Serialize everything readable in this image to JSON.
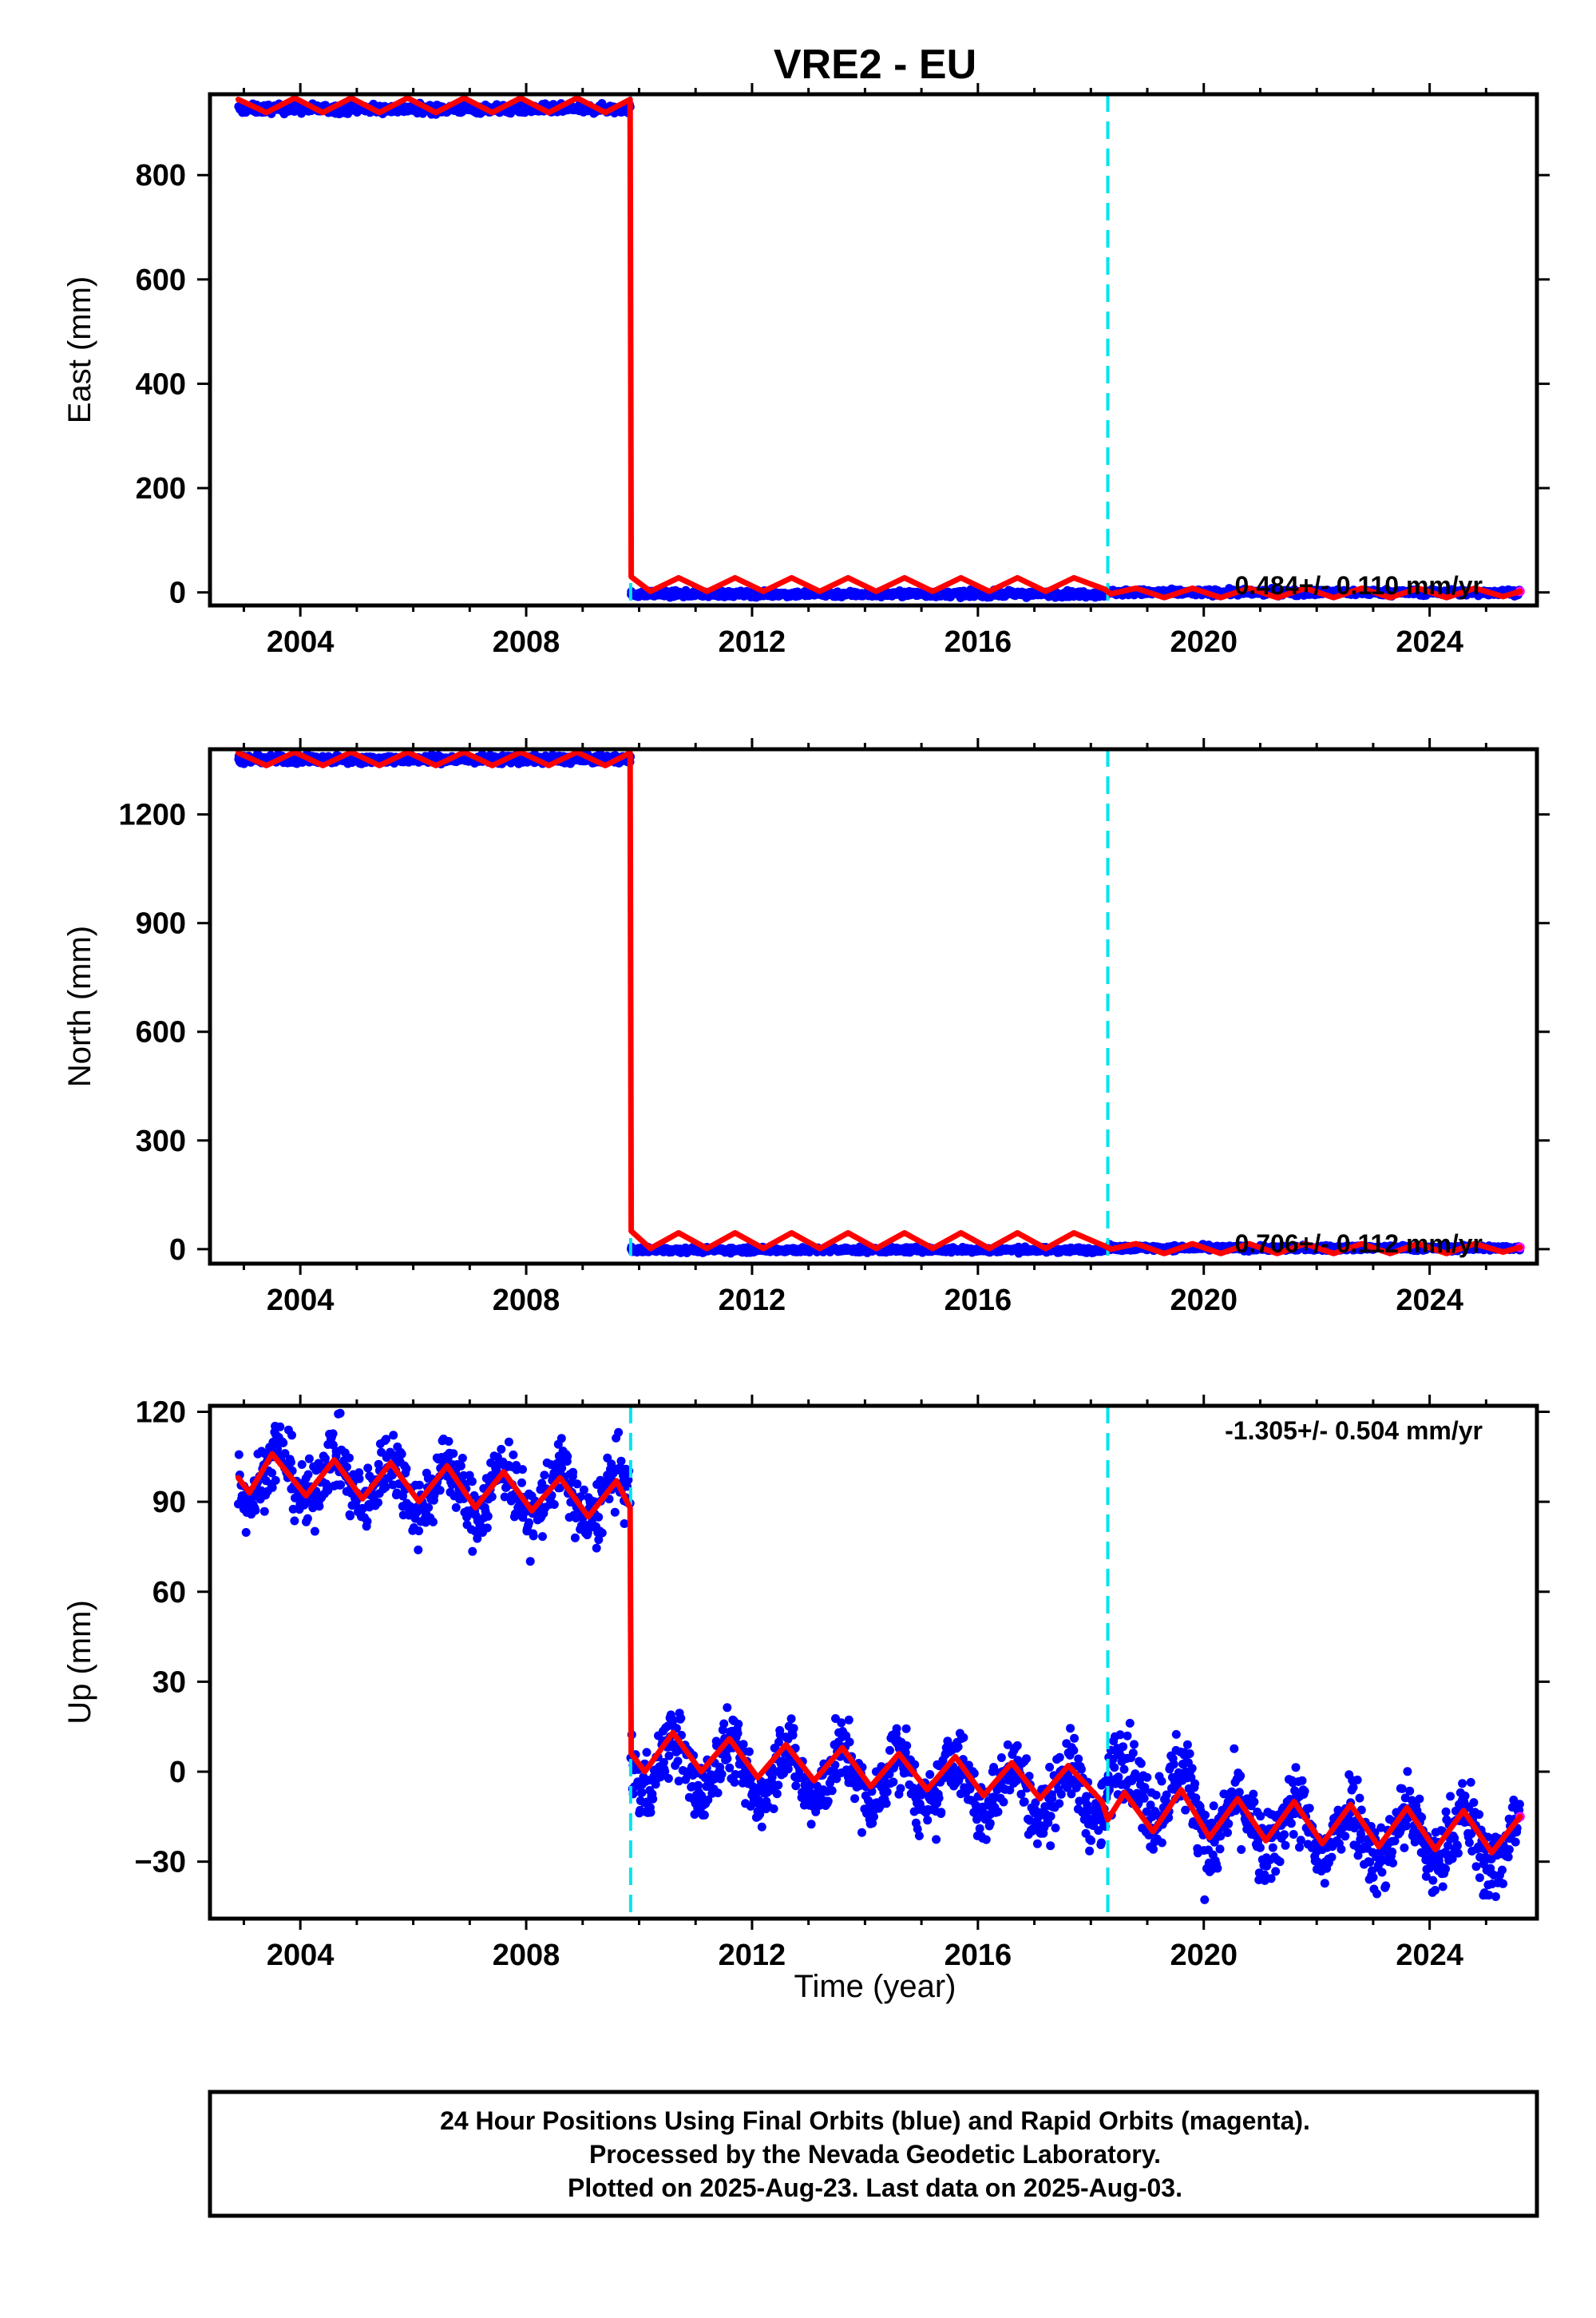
{
  "title": "VRE2 - EU",
  "xlabel": "Time (year)",
  "note_lines": [
    "24 Hour Positions Using Final Orbits (blue) and Rapid Orbits (magenta).",
    "Processed by the Nevada Geodetic Laboratory.",
    "Plotted on 2025-Aug-23. Last data on 2025-Aug-03."
  ],
  "colors": {
    "final_orbits": "#0000ff",
    "rapid_orbits": "#ff00ff",
    "model": "#ff0000",
    "break": "#00e5ee",
    "frame": "#000000"
  },
  "chart_data": [
    {
      "type": "scatter",
      "ylabel": "East (mm)",
      "rate_label": "0.484+/- 0.110 mm/yr",
      "xlim": [
        2002.4,
        2025.9
      ],
      "ylim": [
        -25,
        955
      ],
      "xticks": [
        2004,
        2008,
        2012,
        2016,
        2020,
        2024
      ],
      "yticks": [
        0,
        200,
        400,
        600,
        800
      ],
      "breaks": [
        2009.85,
        2018.3
      ],
      "observations": {
        "x_range": [
          2002.9,
          2025.6
        ],
        "segments": [
          {
            "from": 2002.9,
            "to": 2009.85,
            "level": 927,
            "scatter": 6
          },
          {
            "from": 2009.85,
            "to": 2018.3,
            "level": -3,
            "scatter": 4
          },
          {
            "from": 2018.3,
            "to": 2025.6,
            "level": 0,
            "scatter": 4
          }
        ],
        "last_rapid": [
          2025.55,
          2025.6
        ]
      },
      "model": {
        "series": "fit",
        "points": [
          {
            "x": 2002.9,
            "y": 945
          },
          {
            "x": 2003.4,
            "y": 920
          },
          {
            "x": 2003.9,
            "y": 948
          },
          {
            "x": 2004.4,
            "y": 920
          },
          {
            "x": 2004.9,
            "y": 948
          },
          {
            "x": 2005.4,
            "y": 920
          },
          {
            "x": 2005.9,
            "y": 948
          },
          {
            "x": 2006.4,
            "y": 920
          },
          {
            "x": 2006.9,
            "y": 948
          },
          {
            "x": 2007.4,
            "y": 920
          },
          {
            "x": 2007.9,
            "y": 948
          },
          {
            "x": 2008.4,
            "y": 920
          },
          {
            "x": 2008.9,
            "y": 948
          },
          {
            "x": 2009.4,
            "y": 920
          },
          {
            "x": 2009.84,
            "y": 945
          },
          {
            "x": 2009.86,
            "y": 30
          },
          {
            "x": 2010.2,
            "y": 2
          },
          {
            "x": 2010.7,
            "y": 28
          },
          {
            "x": 2011.2,
            "y": 2
          },
          {
            "x": 2011.7,
            "y": 28
          },
          {
            "x": 2012.2,
            "y": 2
          },
          {
            "x": 2012.7,
            "y": 28
          },
          {
            "x": 2013.2,
            "y": 2
          },
          {
            "x": 2013.7,
            "y": 28
          },
          {
            "x": 2014.2,
            "y": 2
          },
          {
            "x": 2014.7,
            "y": 28
          },
          {
            "x": 2015.2,
            "y": 2
          },
          {
            "x": 2015.7,
            "y": 28
          },
          {
            "x": 2016.2,
            "y": 2
          },
          {
            "x": 2016.7,
            "y": 28
          },
          {
            "x": 2017.2,
            "y": 2
          },
          {
            "x": 2017.7,
            "y": 28
          },
          {
            "x": 2018.25,
            "y": 6
          },
          {
            "x": 2018.35,
            "y": -3
          },
          {
            "x": 2018.8,
            "y": 8
          },
          {
            "x": 2019.3,
            "y": -10
          },
          {
            "x": 2019.8,
            "y": 8
          },
          {
            "x": 2020.3,
            "y": -10
          },
          {
            "x": 2020.8,
            "y": 8
          },
          {
            "x": 2021.3,
            "y": -10
          },
          {
            "x": 2021.8,
            "y": 8
          },
          {
            "x": 2022.3,
            "y": -10
          },
          {
            "x": 2022.8,
            "y": 8
          },
          {
            "x": 2023.3,
            "y": -10
          },
          {
            "x": 2023.8,
            "y": 8
          },
          {
            "x": 2024.3,
            "y": -10
          },
          {
            "x": 2024.8,
            "y": 8
          },
          {
            "x": 2025.3,
            "y": -8
          },
          {
            "x": 2025.6,
            "y": 2
          }
        ]
      }
    },
    {
      "type": "scatter",
      "ylabel": "North (mm)",
      "rate_label": "0.706+/- 0.112 mm/yr",
      "xlim": [
        2002.4,
        2025.9
      ],
      "ylim": [
        -40,
        1380
      ],
      "xticks": [
        2004,
        2008,
        2012,
        2016,
        2020,
        2024
      ],
      "yticks": [
        0,
        300,
        600,
        900,
        1200
      ],
      "breaks": [
        2009.85,
        2018.3
      ],
      "observations": {
        "x_range": [
          2002.9,
          2025.6
        ],
        "segments": [
          {
            "from": 2002.9,
            "to": 2009.85,
            "level": 1352,
            "scatter": 8
          },
          {
            "from": 2009.85,
            "to": 2018.3,
            "level": -2,
            "scatter": 5
          },
          {
            "from": 2018.3,
            "to": 2025.6,
            "level": 3,
            "scatter": 5
          }
        ],
        "last_rapid": [
          2025.55,
          2025.6
        ]
      },
      "model": {
        "series": "fit",
        "points": [
          {
            "x": 2002.9,
            "y": 1370
          },
          {
            "x": 2003.4,
            "y": 1335
          },
          {
            "x": 2003.9,
            "y": 1372
          },
          {
            "x": 2004.4,
            "y": 1335
          },
          {
            "x": 2004.9,
            "y": 1372
          },
          {
            "x": 2005.4,
            "y": 1335
          },
          {
            "x": 2005.9,
            "y": 1372
          },
          {
            "x": 2006.4,
            "y": 1335
          },
          {
            "x": 2006.9,
            "y": 1372
          },
          {
            "x": 2007.4,
            "y": 1335
          },
          {
            "x": 2007.9,
            "y": 1372
          },
          {
            "x": 2008.4,
            "y": 1335
          },
          {
            "x": 2008.9,
            "y": 1372
          },
          {
            "x": 2009.4,
            "y": 1335
          },
          {
            "x": 2009.84,
            "y": 1370
          },
          {
            "x": 2009.86,
            "y": 50
          },
          {
            "x": 2010.2,
            "y": 2
          },
          {
            "x": 2010.7,
            "y": 45
          },
          {
            "x": 2011.2,
            "y": 2
          },
          {
            "x": 2011.7,
            "y": 45
          },
          {
            "x": 2012.2,
            "y": 2
          },
          {
            "x": 2012.7,
            "y": 45
          },
          {
            "x": 2013.2,
            "y": 2
          },
          {
            "x": 2013.7,
            "y": 45
          },
          {
            "x": 2014.2,
            "y": 2
          },
          {
            "x": 2014.7,
            "y": 45
          },
          {
            "x": 2015.2,
            "y": 2
          },
          {
            "x": 2015.7,
            "y": 45
          },
          {
            "x": 2016.2,
            "y": 2
          },
          {
            "x": 2016.7,
            "y": 45
          },
          {
            "x": 2017.2,
            "y": 2
          },
          {
            "x": 2017.7,
            "y": 45
          },
          {
            "x": 2018.25,
            "y": 8
          },
          {
            "x": 2018.35,
            "y": 0
          },
          {
            "x": 2018.8,
            "y": 15
          },
          {
            "x": 2019.3,
            "y": -12
          },
          {
            "x": 2019.8,
            "y": 15
          },
          {
            "x": 2020.3,
            "y": -12
          },
          {
            "x": 2020.8,
            "y": 15
          },
          {
            "x": 2021.3,
            "y": -12
          },
          {
            "x": 2021.8,
            "y": 15
          },
          {
            "x": 2022.3,
            "y": -12
          },
          {
            "x": 2022.8,
            "y": 15
          },
          {
            "x": 2023.3,
            "y": -12
          },
          {
            "x": 2023.8,
            "y": 15
          },
          {
            "x": 2024.3,
            "y": -12
          },
          {
            "x": 2024.8,
            "y": 15
          },
          {
            "x": 2025.3,
            "y": -8
          },
          {
            "x": 2025.6,
            "y": 5
          }
        ]
      }
    },
    {
      "type": "scatter",
      "ylabel": "Up (mm)",
      "rate_label": "-1.305+/- 0.504 mm/yr",
      "xlim": [
        2002.4,
        2025.9
      ],
      "ylim": [
        -49,
        122
      ],
      "xticks": [
        2004,
        2008,
        2012,
        2016,
        2020,
        2024
      ],
      "yticks": [
        -30,
        0,
        30,
        60,
        90,
        120
      ],
      "ytick_labels": [
        "−30",
        "0",
        "30",
        "60",
        "90",
        "120"
      ],
      "breaks": [
        2009.85,
        2018.3
      ],
      "observations": {
        "x_range": [
          2002.9,
          2025.6
        ],
        "segments": [
          {
            "from": 2002.9,
            "to": 2009.85,
            "level_start": 100,
            "level_end": 90,
            "amplitude": 8,
            "scatter": 8
          },
          {
            "from": 2009.85,
            "to": 2018.3,
            "level_start": 3,
            "level_end": -8,
            "amplitude": 9,
            "scatter": 8
          },
          {
            "from": 2018.3,
            "to": 2020.0,
            "level_start": -2,
            "level_end": -10,
            "amplitude": 9,
            "scatter": 9
          },
          {
            "from": 2020.0,
            "to": 2025.6,
            "level_start": -17,
            "level_end": -24,
            "amplitude": 9,
            "scatter": 9
          }
        ],
        "last_rapid": [
          2025.55,
          2025.6
        ]
      },
      "model": {
        "series": "fit",
        "points": [
          {
            "x": 2002.9,
            "y": 98
          },
          {
            "x": 2003.1,
            "y": 93
          },
          {
            "x": 2003.5,
            "y": 106
          },
          {
            "x": 2004.1,
            "y": 92
          },
          {
            "x": 2004.6,
            "y": 104
          },
          {
            "x": 2005.1,
            "y": 91
          },
          {
            "x": 2005.6,
            "y": 103
          },
          {
            "x": 2006.1,
            "y": 90
          },
          {
            "x": 2006.6,
            "y": 102
          },
          {
            "x": 2007.1,
            "y": 88
          },
          {
            "x": 2007.6,
            "y": 100
          },
          {
            "x": 2008.1,
            "y": 87
          },
          {
            "x": 2008.6,
            "y": 98
          },
          {
            "x": 2009.1,
            "y": 85
          },
          {
            "x": 2009.6,
            "y": 97
          },
          {
            "x": 2009.84,
            "y": 88
          },
          {
            "x": 2009.86,
            "y": 6
          },
          {
            "x": 2010.1,
            "y": 0
          },
          {
            "x": 2010.6,
            "y": 13
          },
          {
            "x": 2011.1,
            "y": 0
          },
          {
            "x": 2011.6,
            "y": 11
          },
          {
            "x": 2012.1,
            "y": -2
          },
          {
            "x": 2012.6,
            "y": 9
          },
          {
            "x": 2013.1,
            "y": -3
          },
          {
            "x": 2013.6,
            "y": 8
          },
          {
            "x": 2014.1,
            "y": -5
          },
          {
            "x": 2014.6,
            "y": 6
          },
          {
            "x": 2015.1,
            "y": -6
          },
          {
            "x": 2015.6,
            "y": 5
          },
          {
            "x": 2016.1,
            "y": -8
          },
          {
            "x": 2016.6,
            "y": 3
          },
          {
            "x": 2017.1,
            "y": -9
          },
          {
            "x": 2017.6,
            "y": 2
          },
          {
            "x": 2018.2,
            "y": -10
          },
          {
            "x": 2018.3,
            "y": -16
          },
          {
            "x": 2018.6,
            "y": -7
          },
          {
            "x": 2019.1,
            "y": -20
          },
          {
            "x": 2019.6,
            "y": -6
          },
          {
            "x": 2020.1,
            "y": -22
          },
          {
            "x": 2020.6,
            "y": -9
          },
          {
            "x": 2021.1,
            "y": -23
          },
          {
            "x": 2021.6,
            "y": -10
          },
          {
            "x": 2022.1,
            "y": -24
          },
          {
            "x": 2022.6,
            "y": -11
          },
          {
            "x": 2023.1,
            "y": -25
          },
          {
            "x": 2023.6,
            "y": -12
          },
          {
            "x": 2024.1,
            "y": -26
          },
          {
            "x": 2024.6,
            "y": -13
          },
          {
            "x": 2025.1,
            "y": -27
          },
          {
            "x": 2025.6,
            "y": -15
          }
        ]
      }
    }
  ]
}
